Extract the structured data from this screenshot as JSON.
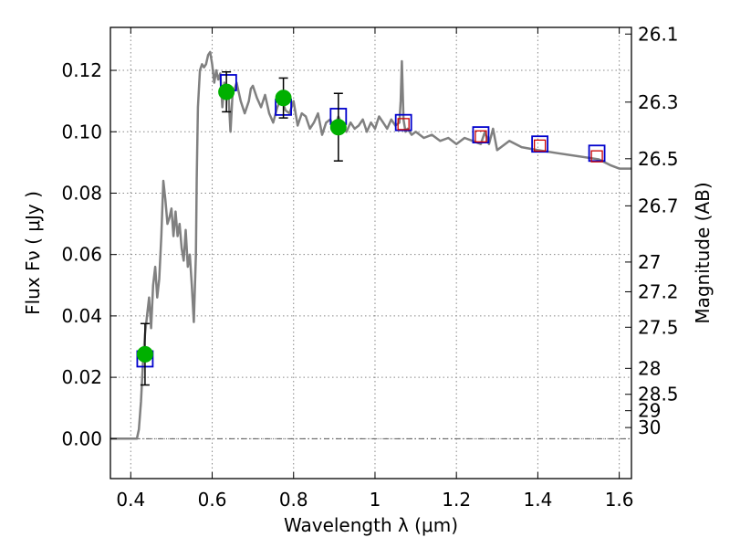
{
  "chart_data": {
    "type": "scatter",
    "xlabel": "Wavelength  λ (μm)",
    "ylabel": "Flux  Fν  ( μJy )",
    "y2label": "Magnitude (AB)",
    "xlim": [
      0.35,
      1.63
    ],
    "ylim": [
      -0.013,
      0.134
    ],
    "grid": true,
    "x_ticks": [
      0.4,
      0.6,
      0.8,
      1.0,
      1.2,
      1.4,
      1.6
    ],
    "x_tick_labels": [
      "0.4",
      "0.6",
      "0.8",
      "1",
      "1.2",
      "1.4",
      "1.6"
    ],
    "y_ticks": [
      0.0,
      0.02,
      0.04,
      0.06,
      0.08,
      0.1,
      0.12
    ],
    "y_tick_labels": [
      "0.00",
      "0.02",
      "0.04",
      "0.06",
      "0.08",
      "0.10",
      "0.12"
    ],
    "y2_ticks": [
      26.1,
      26.3,
      26.5,
      26.7,
      27,
      27.2,
      27.5,
      28,
      28.5,
      29,
      30
    ],
    "y2_tick_labels": [
      "26.1",
      "26.3",
      "26.5",
      "26.7",
      "27",
      "27.2",
      "27.5",
      "28",
      "28.5",
      "29",
      "30"
    ],
    "colors": {
      "model": "#808080",
      "observed": "#00b000",
      "model_band": "#0000cc",
      "predicted": "#cc0000",
      "errorbar": "#000000",
      "grid": "#888888"
    },
    "series": [
      {
        "kind": "model_spectrum",
        "x": [
          0.35,
          0.4,
          0.415,
          0.42,
          0.425,
          0.43,
          0.435,
          0.44,
          0.445,
          0.45,
          0.455,
          0.46,
          0.465,
          0.47,
          0.475,
          0.48,
          0.485,
          0.49,
          0.495,
          0.5,
          0.505,
          0.51,
          0.515,
          0.52,
          0.525,
          0.53,
          0.535,
          0.54,
          0.545,
          0.55,
          0.555,
          0.56,
          0.562,
          0.565,
          0.57,
          0.575,
          0.58,
          0.585,
          0.59,
          0.595,
          0.6,
          0.605,
          0.61,
          0.615,
          0.62,
          0.625,
          0.63,
          0.635,
          0.64,
          0.645,
          0.65,
          0.655,
          0.66,
          0.67,
          0.68,
          0.69,
          0.695,
          0.7,
          0.71,
          0.72,
          0.73,
          0.74,
          0.75,
          0.76,
          0.77,
          0.78,
          0.79,
          0.8,
          0.81,
          0.82,
          0.83,
          0.84,
          0.85,
          0.86,
          0.87,
          0.88,
          0.89,
          0.9,
          0.91,
          0.92,
          0.93,
          0.94,
          0.95,
          0.96,
          0.97,
          0.98,
          0.99,
          1.0,
          1.01,
          1.02,
          1.03,
          1.04,
          1.05,
          1.06,
          1.063,
          1.066,
          1.07,
          1.075,
          1.08,
          1.09,
          1.1,
          1.12,
          1.14,
          1.16,
          1.18,
          1.2,
          1.22,
          1.24,
          1.26,
          1.27,
          1.28,
          1.29,
          1.3,
          1.33,
          1.36,
          1.4,
          1.45,
          1.5,
          1.55,
          1.58,
          1.6,
          1.63
        ],
        "y": [
          0.0,
          0.0,
          0.0,
          0.003,
          0.012,
          0.025,
          0.034,
          0.04,
          0.046,
          0.036,
          0.05,
          0.056,
          0.046,
          0.052,
          0.066,
          0.084,
          0.078,
          0.07,
          0.072,
          0.075,
          0.066,
          0.074,
          0.066,
          0.07,
          0.062,
          0.058,
          0.068,
          0.056,
          0.06,
          0.05,
          0.038,
          0.06,
          0.085,
          0.108,
          0.12,
          0.122,
          0.121,
          0.122,
          0.125,
          0.126,
          0.122,
          0.116,
          0.12,
          0.117,
          0.119,
          0.108,
          0.116,
          0.114,
          0.112,
          0.1,
          0.112,
          0.114,
          0.116,
          0.11,
          0.106,
          0.11,
          0.114,
          0.115,
          0.111,
          0.108,
          0.112,
          0.106,
          0.103,
          0.108,
          0.111,
          0.107,
          0.106,
          0.11,
          0.102,
          0.106,
          0.105,
          0.101,
          0.103,
          0.106,
          0.099,
          0.103,
          0.104,
          0.101,
          0.105,
          0.102,
          0.1,
          0.103,
          0.101,
          0.102,
          0.104,
          0.1,
          0.103,
          0.101,
          0.105,
          0.103,
          0.101,
          0.104,
          0.102,
          0.103,
          0.11,
          0.123,
          0.104,
          0.1,
          0.101,
          0.099,
          0.1,
          0.098,
          0.099,
          0.097,
          0.098,
          0.096,
          0.098,
          0.097,
          0.096,
          0.1,
          0.096,
          0.101,
          0.094,
          0.097,
          0.095,
          0.094,
          0.093,
          0.092,
          0.091,
          0.089,
          0.088,
          0.088
        ],
        "name": ""
      },
      {
        "kind": "observed_photometry",
        "x": [
          0.435,
          0.635,
          0.775,
          0.91
        ],
        "y": [
          0.0275,
          0.113,
          0.111,
          0.1015
        ],
        "yerr": [
          0.01,
          0.0065,
          0.0065,
          0.011
        ],
        "name": ""
      },
      {
        "kind": "model_band_flux",
        "x": [
          0.435,
          0.64,
          0.775,
          0.91,
          1.07,
          1.26,
          1.405,
          1.545
        ],
        "y": [
          0.026,
          0.116,
          0.108,
          0.105,
          0.103,
          0.099,
          0.096,
          0.093
        ],
        "name": ""
      },
      {
        "kind": "predicted_band_flux",
        "x": [
          1.07,
          1.26,
          1.405,
          1.545
        ],
        "y": [
          0.1025,
          0.0985,
          0.0955,
          0.092
        ],
        "name": ""
      }
    ]
  }
}
